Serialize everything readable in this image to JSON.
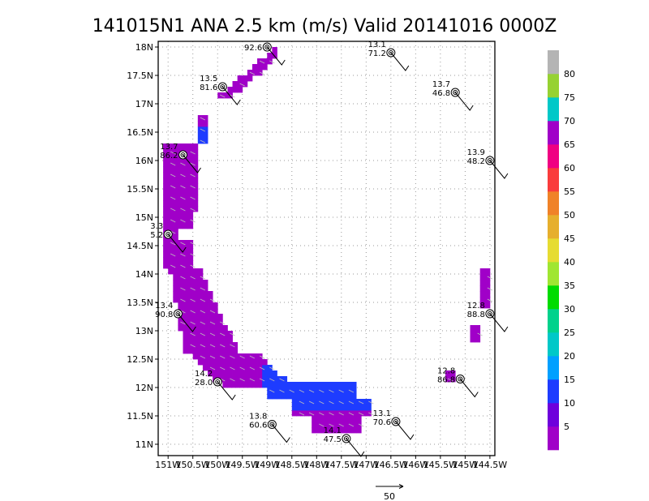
{
  "title": "141015N1 ANA 2.5 km (m/s) Valid 20141016  0000Z",
  "chart_data": {
    "type": "heatmap",
    "x_tick_labels": [
      "151W",
      "150.5W",
      "150W",
      "149.5W",
      "149W",
      "148.5W",
      "148W",
      "147.5W",
      "147W",
      "146.5W",
      "146W",
      "145.5W",
      "145W",
      "144.5W"
    ],
    "y_tick_labels": [
      "18N",
      "17.5N",
      "17N",
      "16.5N",
      "16N",
      "15.5N",
      "15N",
      "14.5N",
      "14N",
      "13.5N",
      "13N",
      "12.5N",
      "12N",
      "11.5N",
      "11N"
    ],
    "xlim": [
      -151.2,
      -144.4
    ],
    "ylim": [
      10.8,
      18.1
    ],
    "grid": true,
    "colorbar": {
      "tick_labels": [
        "5",
        "10",
        "15",
        "20",
        "25",
        "30",
        "35",
        "40",
        "45",
        "50",
        "55",
        "60",
        "65",
        "70",
        "75",
        "80"
      ],
      "colors": [
        "#a000c8",
        "#6e00dc",
        "#1e3cff",
        "#00a0ff",
        "#00c8c8",
        "#00d28c",
        "#00dc00",
        "#a0e632",
        "#e6dc32",
        "#e6af2d",
        "#f08228",
        "#fa3c3c",
        "#f00082",
        "#a000c8",
        "#00c8c8",
        "#96d232",
        "#b4b4b4"
      ]
    },
    "reference_vector": {
      "label": "50"
    },
    "observations": [
      {
        "id": "obs-1",
        "lon": -149.0,
        "lat": 18.0,
        "label1": "",
        "label2": "92.6"
      },
      {
        "id": "obs-2",
        "lon": -146.5,
        "lat": 17.9,
        "label1": "13.1",
        "label2": "71.2"
      },
      {
        "id": "obs-3",
        "lon": -149.9,
        "lat": 17.3,
        "label1": "13.5",
        "label2": "81.6"
      },
      {
        "id": "obs-4",
        "lon": -145.2,
        "lat": 17.2,
        "label1": "13.7",
        "label2": "46.8"
      },
      {
        "id": "obs-5",
        "lon": -150.7,
        "lat": 16.1,
        "label1": "13.7",
        "label2": "86.2"
      },
      {
        "id": "obs-6",
        "lon": -144.5,
        "lat": 16.0,
        "label1": "13.9",
        "label2": "48.2"
      },
      {
        "id": "obs-7",
        "lon": -151.0,
        "lat": 14.7,
        "label1": "3.3",
        "label2": "5.2"
      },
      {
        "id": "obs-8",
        "lon": -150.8,
        "lat": 13.3,
        "label1": "13.4",
        "label2": "90.8"
      },
      {
        "id": "obs-9",
        "lon": -144.5,
        "lat": 13.3,
        "label1": "12.8",
        "label2": "88.8"
      },
      {
        "id": "obs-10",
        "lon": -150.0,
        "lat": 12.1,
        "label1": "14.2",
        "label2": "28.0"
      },
      {
        "id": "obs-11",
        "lon": -145.1,
        "lat": 12.15,
        "label1": "12.8",
        "label2": "86.8"
      },
      {
        "id": "obs-12",
        "lon": -148.9,
        "lat": 11.35,
        "label1": "13.8",
        "label2": "60.6"
      },
      {
        "id": "obs-13",
        "lon": -146.4,
        "lat": 11.4,
        "label1": "13.1",
        "label2": "70.6"
      },
      {
        "id": "obs-14",
        "lon": -147.4,
        "lat": 11.1,
        "label1": "14.1",
        "label2": "47.5"
      }
    ]
  }
}
